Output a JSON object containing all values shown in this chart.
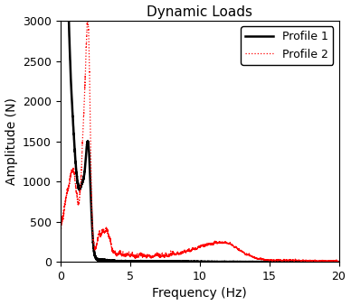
{
  "title": "Dynamic Loads",
  "xlabel": "Frequency (Hz)",
  "ylabel": "Amplitude (N)",
  "xlim": [
    0,
    20
  ],
  "ylim": [
    0,
    3000
  ],
  "yticks": [
    0,
    500,
    1000,
    1500,
    2000,
    2500,
    3000
  ],
  "xticks": [
    0,
    5,
    10,
    15,
    20
  ],
  "profile1_color": "#000000",
  "profile1_linewidth": 1.8,
  "profile1_linestyle": "solid",
  "profile1_label": "Profile 1",
  "profile2_color": "#ff0000",
  "profile2_linewidth": 0.9,
  "profile2_linestyle": "dotted",
  "profile2_label": "Profile 2",
  "background_color": "#ffffff",
  "title_fontsize": 11,
  "label_fontsize": 10,
  "tick_fontsize": 9,
  "legend_fontsize": 9
}
